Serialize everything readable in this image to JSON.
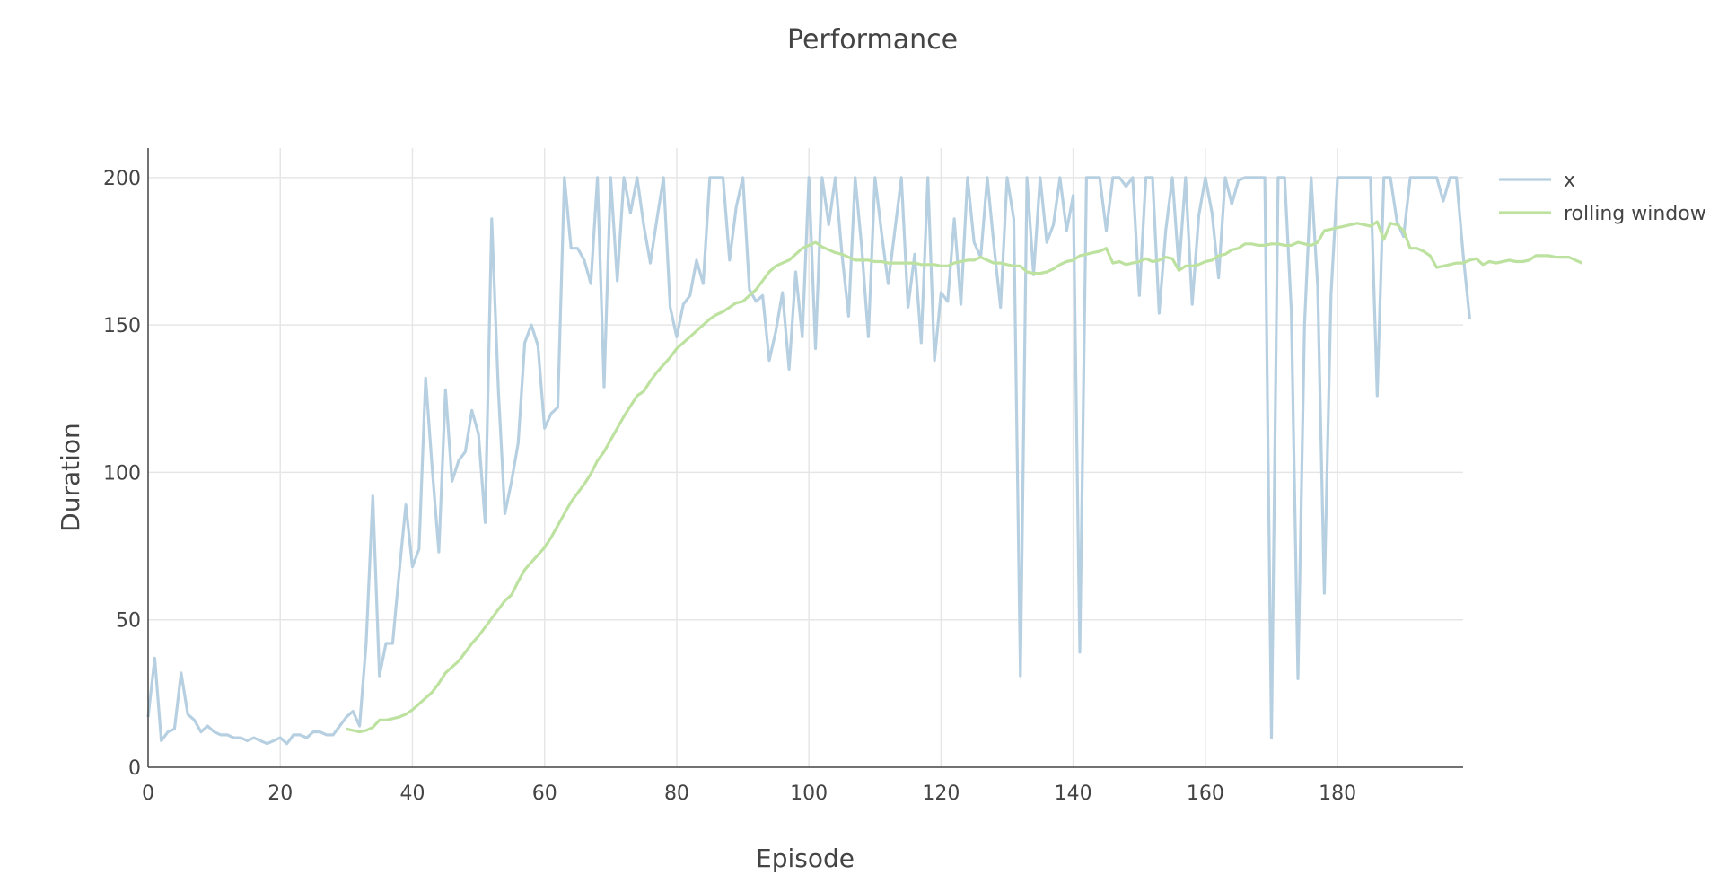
{
  "chart_data": {
    "type": "line",
    "title": "Performance",
    "xlabel": "Episode",
    "ylabel": "Duration",
    "xlim": [
      0,
      199
    ],
    "ylim": [
      0,
      210
    ],
    "x_ticks": [
      0,
      20,
      40,
      60,
      80,
      100,
      120,
      140,
      160,
      180
    ],
    "y_ticks": [
      0,
      50,
      100,
      150,
      200
    ],
    "grid": true,
    "legend_position": "top-right",
    "series": [
      {
        "name": "x",
        "color": "#b7d0e1",
        "x_start": 0,
        "values": [
          17,
          37,
          9,
          12,
          13,
          32,
          18,
          16,
          12,
          14,
          12,
          11,
          11,
          10,
          10,
          9,
          10,
          9,
          8,
          9,
          10,
          8,
          11,
          11,
          10,
          12,
          12,
          11,
          11,
          14,
          17,
          19,
          14,
          42,
          92,
          31,
          42,
          42,
          66,
          89,
          68,
          74,
          132,
          101,
          73,
          128,
          97,
          104,
          107,
          121,
          113,
          83,
          186,
          128,
          86,
          97,
          110,
          144,
          150,
          143,
          115,
          120,
          122,
          200,
          176,
          176,
          172,
          164,
          200,
          129,
          200,
          165,
          200,
          188,
          200,
          184,
          171,
          186,
          200,
          156,
          146,
          157,
          160,
          172,
          164,
          200,
          200,
          200,
          172,
          190,
          200,
          162,
          158,
          160,
          138,
          148,
          161,
          135,
          168,
          146,
          200,
          142,
          200,
          184,
          200,
          174,
          153,
          200,
          176,
          146,
          200,
          181,
          164,
          182,
          200,
          156,
          174,
          144,
          200,
          138,
          161,
          158,
          186,
          157,
          200,
          178,
          173,
          200,
          177,
          156,
          200,
          186,
          31,
          200,
          167,
          200,
          178,
          184,
          200,
          182,
          194,
          39,
          200,
          200,
          200,
          182,
          200,
          200,
          197,
          200,
          160,
          200,
          200,
          154,
          182,
          200,
          169,
          200,
          157,
          187,
          200,
          188,
          166,
          200,
          191,
          199,
          200,
          200,
          200,
          200,
          10,
          200,
          200,
          155,
          30,
          150,
          200,
          163,
          59,
          160,
          200,
          200,
          200,
          200,
          200,
          200,
          126,
          200,
          200,
          185,
          180,
          200,
          200,
          200,
          200,
          200,
          192,
          200,
          200,
          174,
          152
        ]
      },
      {
        "name": "rolling window",
        "color": "#bde2a0",
        "x_start": 30,
        "values": [
          13,
          12.5,
          12,
          12.5,
          13.5,
          16,
          16,
          16.5,
          17,
          18,
          19.5,
          21.5,
          23.5,
          25.5,
          28.5,
          32,
          34,
          36,
          39,
          42,
          44.5,
          47.5,
          50.5,
          53.5,
          56.5,
          58.5,
          63,
          67,
          69.5,
          72,
          74.5,
          78,
          82,
          86,
          90,
          93,
          96,
          99.5,
          104,
          107,
          111,
          115,
          119,
          122.5,
          126,
          127.5,
          131,
          134,
          136.5,
          139,
          142,
          144,
          146,
          148,
          150,
          152,
          153.5,
          154.5,
          156,
          157.5,
          158,
          160,
          162,
          165,
          168,
          170,
          171,
          172,
          174,
          176,
          177,
          178,
          176.5,
          175.5,
          174.5,
          174,
          173,
          172,
          172,
          172,
          171.5,
          171.5,
          171,
          171,
          171,
          171,
          171,
          170.5,
          170.5,
          170.5,
          170,
          170,
          171,
          171.5,
          172,
          172,
          173,
          172,
          171,
          171,
          170.5,
          170,
          170,
          168,
          167.5,
          167.5,
          168,
          169,
          170.5,
          171.5,
          172,
          173.5,
          174,
          174.5,
          175,
          176,
          171,
          171.5,
          170.5,
          171,
          171.5,
          172.5,
          171.5,
          172,
          173,
          172.5,
          168.5,
          170,
          170,
          170.5,
          171.5,
          172,
          173.5,
          174,
          175.5,
          176,
          177.5,
          177.5,
          177,
          177,
          177.5,
          177.5,
          177,
          177,
          178,
          177.5,
          177,
          178,
          182,
          182.5,
          183,
          183.5,
          184,
          184.5,
          184,
          183.5,
          185,
          179,
          184.5,
          184,
          182,
          176,
          176,
          175,
          173.5,
          169.5,
          170,
          170.5,
          171,
          171,
          172,
          172.5,
          170.5,
          171.5,
          171,
          171.5,
          172,
          171.5,
          171.5,
          172,
          173.5,
          173.5,
          173.5,
          173,
          173,
          173,
          172,
          171
        ]
      }
    ]
  }
}
